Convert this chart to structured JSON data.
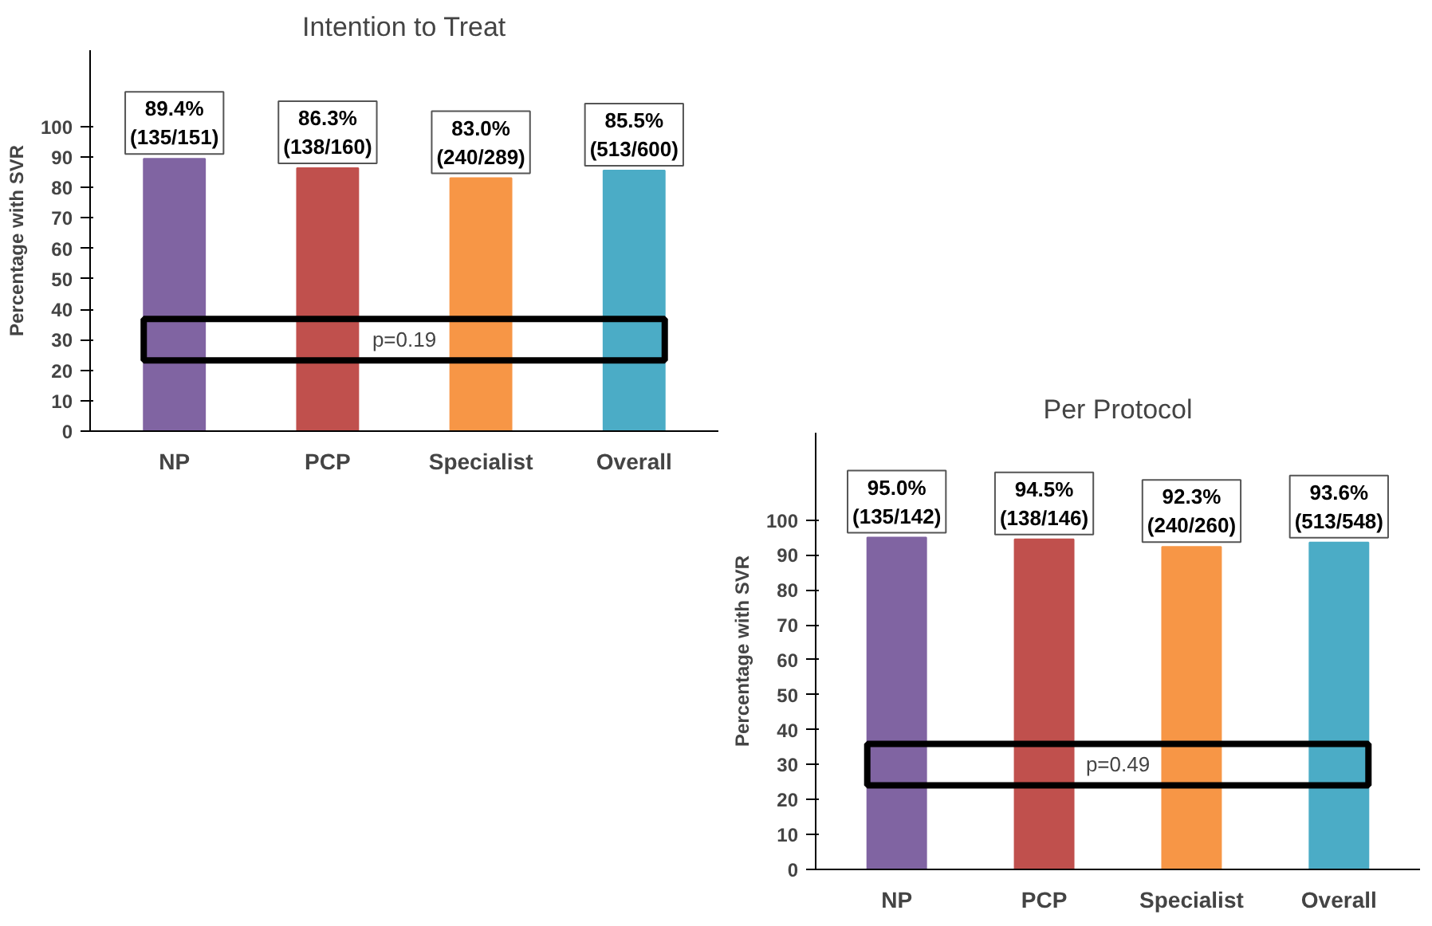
{
  "chart_data": [
    {
      "type": "bar",
      "title": "Intention to Treat",
      "ylabel": "Percentage with SVR",
      "categories": [
        "NP",
        "PCP",
        "Specialist",
        "Overall"
      ],
      "values": [
        89.4,
        86.3,
        83.0,
        85.5
      ],
      "colors": [
        "#8064a2",
        "#c0504d",
        "#f79646",
        "#4bacc6"
      ],
      "value_labels": [
        "89.4%\n(135/151)",
        "86.3%\n(138/160)",
        "83.0%\n(240/289)",
        "85.5%\n(513/600)"
      ],
      "ylim": [
        0,
        125
      ],
      "yticks": [
        0,
        10,
        20,
        30,
        40,
        50,
        60,
        70,
        80,
        90,
        100
      ],
      "grid": false,
      "annotations": [
        "p=0.19"
      ]
    },
    {
      "type": "bar",
      "title": "Per Protocol",
      "ylabel": "Percentage with SVR",
      "categories": [
        "NP",
        "PCP",
        "Specialist",
        "Overall"
      ],
      "values": [
        95.0,
        94.5,
        92.3,
        93.6
      ],
      "colors": [
        "#8064a2",
        "#c0504d",
        "#f79646",
        "#4bacc6"
      ],
      "value_labels": [
        "95.0%\n(135/142)",
        "94.5%\n(138/146)",
        "92.3%\n(240/260)",
        "93.6%\n(513/548)"
      ],
      "ylim": [
        0,
        125
      ],
      "yticks": [
        0,
        10,
        20,
        30,
        40,
        50,
        60,
        70,
        80,
        90,
        100
      ],
      "grid": false,
      "annotations": [
        "p=0.49"
      ]
    }
  ]
}
